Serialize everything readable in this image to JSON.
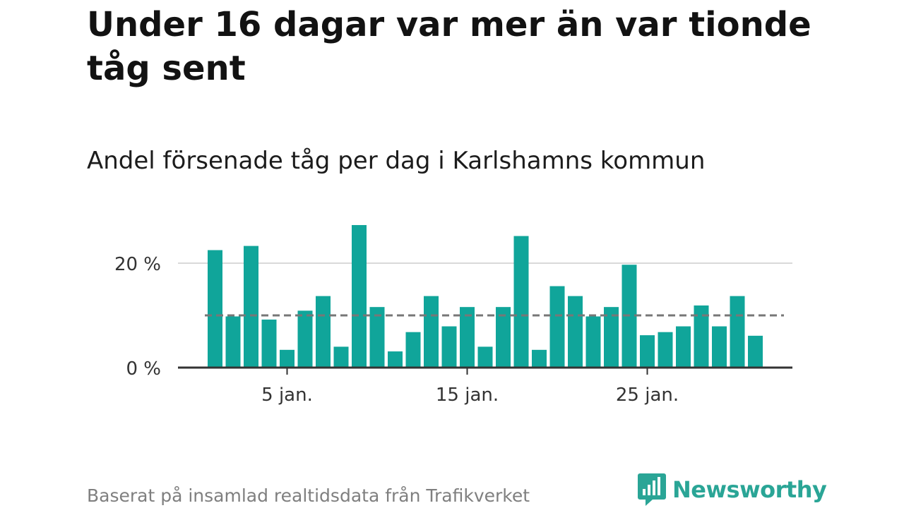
{
  "title": "Under 16 dagar var mer än var tionde tåg sent",
  "subtitle": "Andel försenade tåg per dag i Karlshamns kommun",
  "source": "Baserat på insamlad realtidsdata från Trafikverket",
  "brand": {
    "name": "Newsworthy",
    "icon": "newsworthy-logo-icon",
    "color": "#2aa596"
  },
  "colors": {
    "bar": "#10a59a",
    "reference": "#777777",
    "grid": "#d9d9d9",
    "axis": "#333333"
  },
  "chart_data": {
    "type": "bar",
    "title": "Andel försenade tåg per dag i Karlshamns kommun",
    "x": [
      1,
      2,
      3,
      4,
      5,
      6,
      7,
      8,
      9,
      10,
      11,
      12,
      13,
      14,
      15,
      16,
      17,
      18,
      19,
      20,
      21,
      22,
      23,
      24,
      25,
      26,
      27,
      28,
      29,
      30,
      31
    ],
    "values": [
      22.5,
      9.8,
      23.3,
      9.2,
      3.4,
      10.9,
      13.7,
      4.0,
      27.3,
      11.6,
      3.1,
      6.8,
      13.7,
      7.9,
      11.6,
      4.0,
      11.6,
      25.2,
      3.4,
      15.6,
      13.7,
      9.8,
      11.6,
      19.7,
      6.2,
      6.8,
      7.9,
      11.9,
      7.9,
      13.7,
      6.1
    ],
    "reference_line": 10,
    "xlabel": "",
    "ylabel": "",
    "ylim": [
      0,
      30
    ],
    "y_ticks": [
      0,
      20
    ],
    "y_tick_labels": [
      "0 %",
      "20 %"
    ],
    "x_ticks": [
      5,
      15,
      25
    ],
    "x_tick_labels": [
      "5 jan.",
      "15 jan.",
      "25 jan."
    ],
    "grid": true
  }
}
